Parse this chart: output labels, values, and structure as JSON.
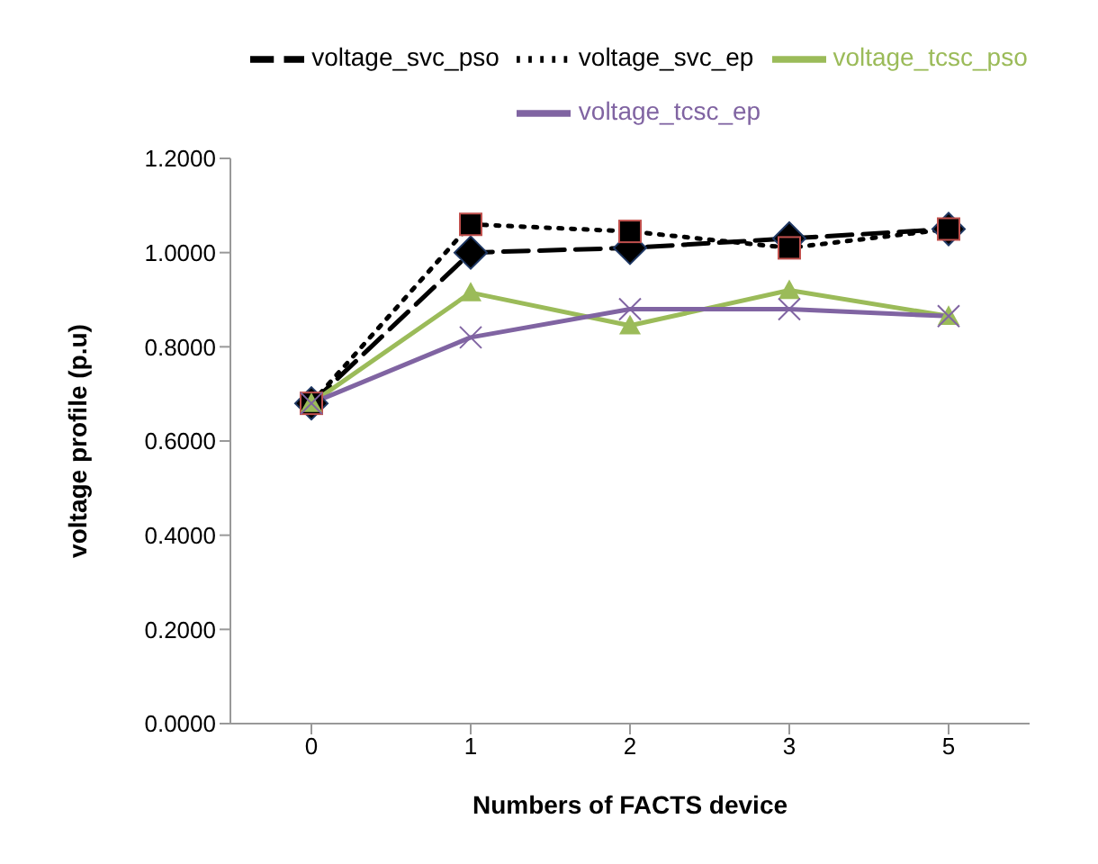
{
  "chart_data": {
    "type": "line",
    "xlabel": "Numbers of FACTS device",
    "ylabel": "voltage profile (p.u)",
    "categories": [
      "0",
      "1",
      "2",
      "3",
      "5"
    ],
    "series": [
      {
        "name": "voltage_svc_pso",
        "color": "#000000",
        "marker": "diamond",
        "line_style": "dashed",
        "values": [
          0.68,
          1.0,
          1.01,
          1.03,
          1.05
        ]
      },
      {
        "name": "voltage_svc_ep",
        "color": "#000000",
        "marker": "square",
        "line_style": "dotted",
        "values": [
          0.68,
          1.06,
          1.045,
          1.01,
          1.05
        ]
      },
      {
        "name": "voltage_tcsc_pso",
        "color": "#9bbb59",
        "marker": "triangle",
        "line_style": "solid",
        "values": [
          0.68,
          0.915,
          0.845,
          0.92,
          0.865
        ]
      },
      {
        "name": "voltage_tcsc_ep",
        "color": "#8064a2",
        "marker": "cross",
        "line_style": "solid",
        "values": [
          0.68,
          0.82,
          0.88,
          0.88,
          0.865
        ]
      }
    ],
    "ylim": [
      0,
      1.2
    ],
    "yticks": [
      {
        "value": 0,
        "label": "0.0000"
      },
      {
        "value": 0.2,
        "label": "0.2000"
      },
      {
        "value": 0.4,
        "label": "0.4000"
      },
      {
        "value": 0.6,
        "label": "0.6000"
      },
      {
        "value": 0.8,
        "label": "0.8000"
      },
      {
        "value": 1.0,
        "label": "1.0000"
      },
      {
        "value": 1.2,
        "label": "1.2000"
      }
    ],
    "grid": false,
    "legend": "top"
  }
}
